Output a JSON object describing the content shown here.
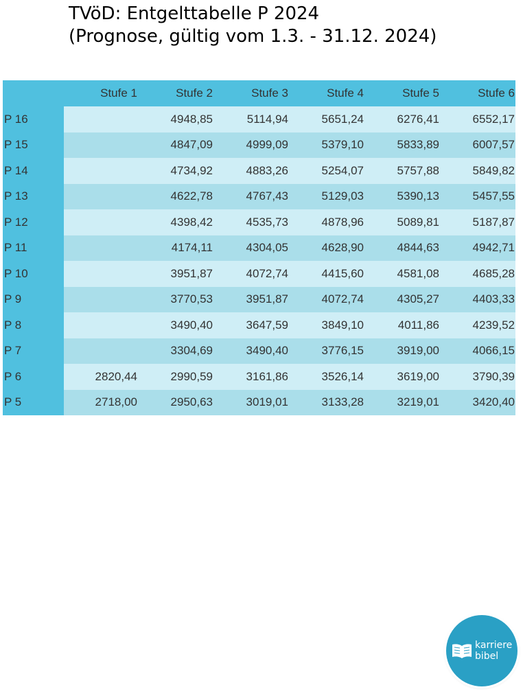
{
  "title": {
    "line1": "TVöD: Entgelttabelle P 2024",
    "line2": "(Prognose, gültig vom 1.3. - 31.12. 2024)"
  },
  "table": {
    "headers": [
      "",
      "Stufe 1",
      "Stufe 2",
      "Stufe 3",
      "Stufe 4",
      "Stufe 5",
      "Stufe 6"
    ],
    "rows": [
      {
        "label": "P 16",
        "cells": [
          "",
          "4948,85",
          "5114,94",
          "5651,24",
          "6276,41",
          "6552,17"
        ]
      },
      {
        "label": "P 15",
        "cells": [
          "",
          "4847,09",
          "4999,09",
          "5379,10",
          "5833,89",
          "6007,57"
        ]
      },
      {
        "label": "P 14",
        "cells": [
          "",
          "4734,92",
          "4883,26",
          "5254,07",
          "5757,88",
          "5849,82"
        ]
      },
      {
        "label": "P 13",
        "cells": [
          "",
          "4622,78",
          "4767,43",
          "5129,03",
          "5390,13",
          "5457,55"
        ]
      },
      {
        "label": "P 12",
        "cells": [
          "",
          "4398,42",
          "4535,73",
          "4878,96",
          "5089,81",
          "5187,87"
        ]
      },
      {
        "label": "P 11",
        "cells": [
          "",
          "4174,11",
          "4304,05",
          "4628,90",
          "4844,63",
          "4942,71"
        ]
      },
      {
        "label": "P 10",
        "cells": [
          "",
          "3951,87",
          "4072,74",
          "4415,60",
          "4581,08",
          "4685,28"
        ]
      },
      {
        "label": "P 9",
        "cells": [
          "",
          "3770,53",
          "3951,87",
          "4072,74",
          "4305,27",
          "4403,33"
        ]
      },
      {
        "label": "P 8",
        "cells": [
          "",
          "3490,40",
          "3647,59",
          "3849,10",
          "4011,86",
          "4239,52"
        ]
      },
      {
        "label": "P 7",
        "cells": [
          "",
          "3304,69",
          "3490,40",
          "3776,15",
          "3919,00",
          "4066,15"
        ]
      },
      {
        "label": "P 6",
        "cells": [
          "2820,44",
          "2990,59",
          "3161,86",
          "3526,14",
          "3619,00",
          "3790,39"
        ]
      },
      {
        "label": "P 5",
        "cells": [
          "2718,00",
          "2950,63",
          "3019,01",
          "3133,28",
          "3219,01",
          "3420,40"
        ]
      }
    ]
  },
  "logo": {
    "line1": "karriere",
    "line2": "bibel",
    "icon": "open-book-icon",
    "color": "#2aa0c5"
  },
  "colors": {
    "header": "#50c0df",
    "row_light": "#cfeef6",
    "row_dark": "#aadeea"
  }
}
